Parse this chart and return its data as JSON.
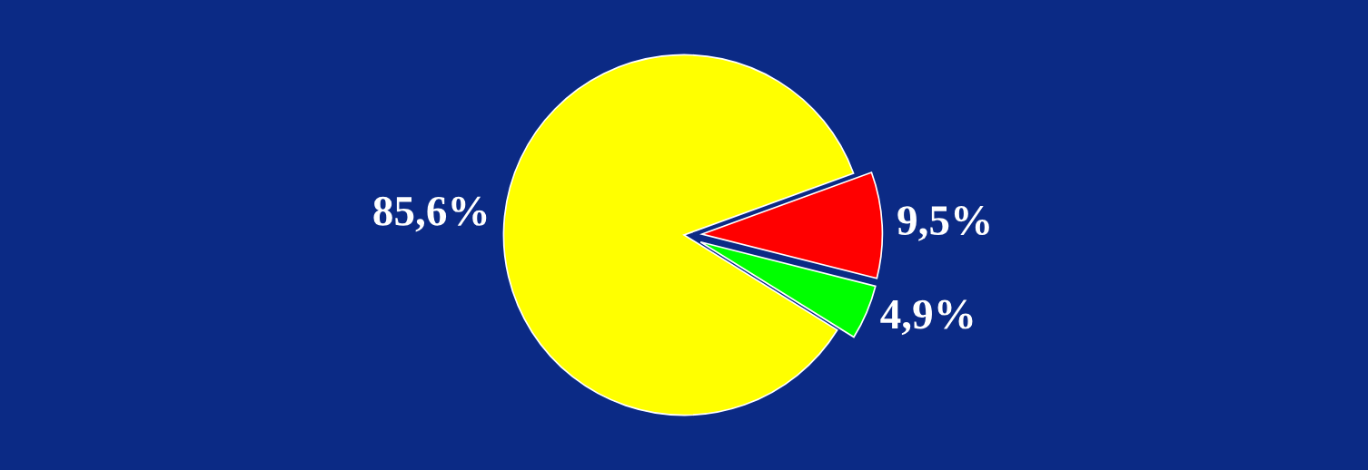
{
  "chart_data": {
    "type": "pie",
    "categories": [
      null,
      null,
      null
    ],
    "values": [
      85.6,
      4.9,
      9.5
    ],
    "colors": [
      "#ffff00",
      "#00ff00",
      "#ff0000"
    ],
    "value_labels": [
      "85,6%",
      "4,9%",
      "9,5%"
    ]
  }
}
